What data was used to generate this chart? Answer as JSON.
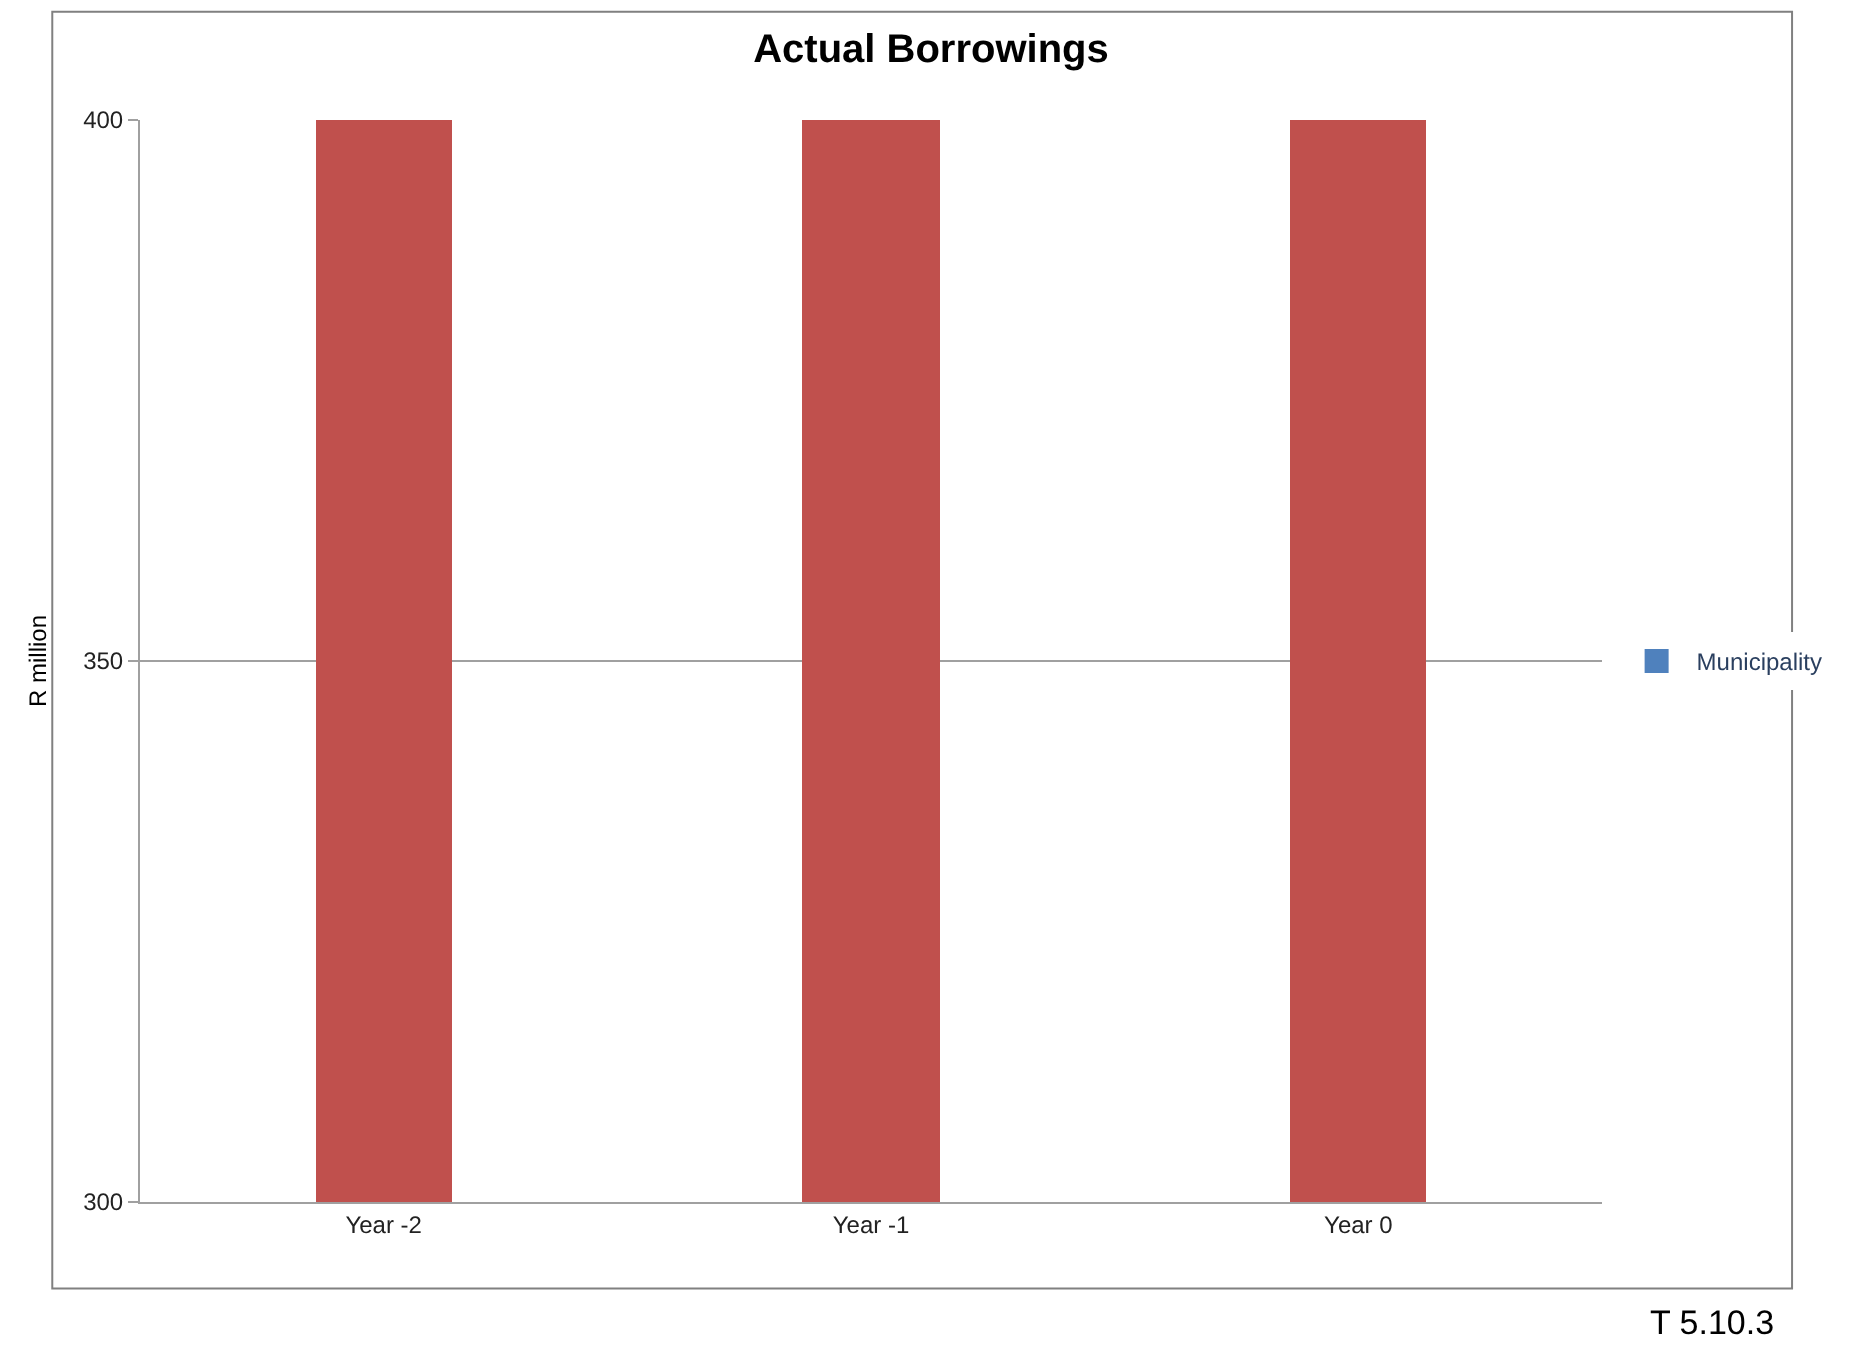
{
  "chart_data": {
    "type": "bar",
    "title": "Actual Borrowings",
    "ylabel": "R million",
    "categories": [
      "Year -2",
      "Year -1",
      "Year 0"
    ],
    "series": [
      {
        "name": "Municipality",
        "color": "#4f81bd",
        "colors": [
          "#c0504d",
          "#c0504d",
          "#c0504d"
        ],
        "values": [
          400,
          400,
          400
        ]
      }
    ],
    "ylim": [
      300,
      400
    ],
    "yticks": [
      300,
      350,
      400
    ],
    "grid": "y",
    "legend": "right",
    "annotations": [
      "T 5.10.3"
    ]
  }
}
